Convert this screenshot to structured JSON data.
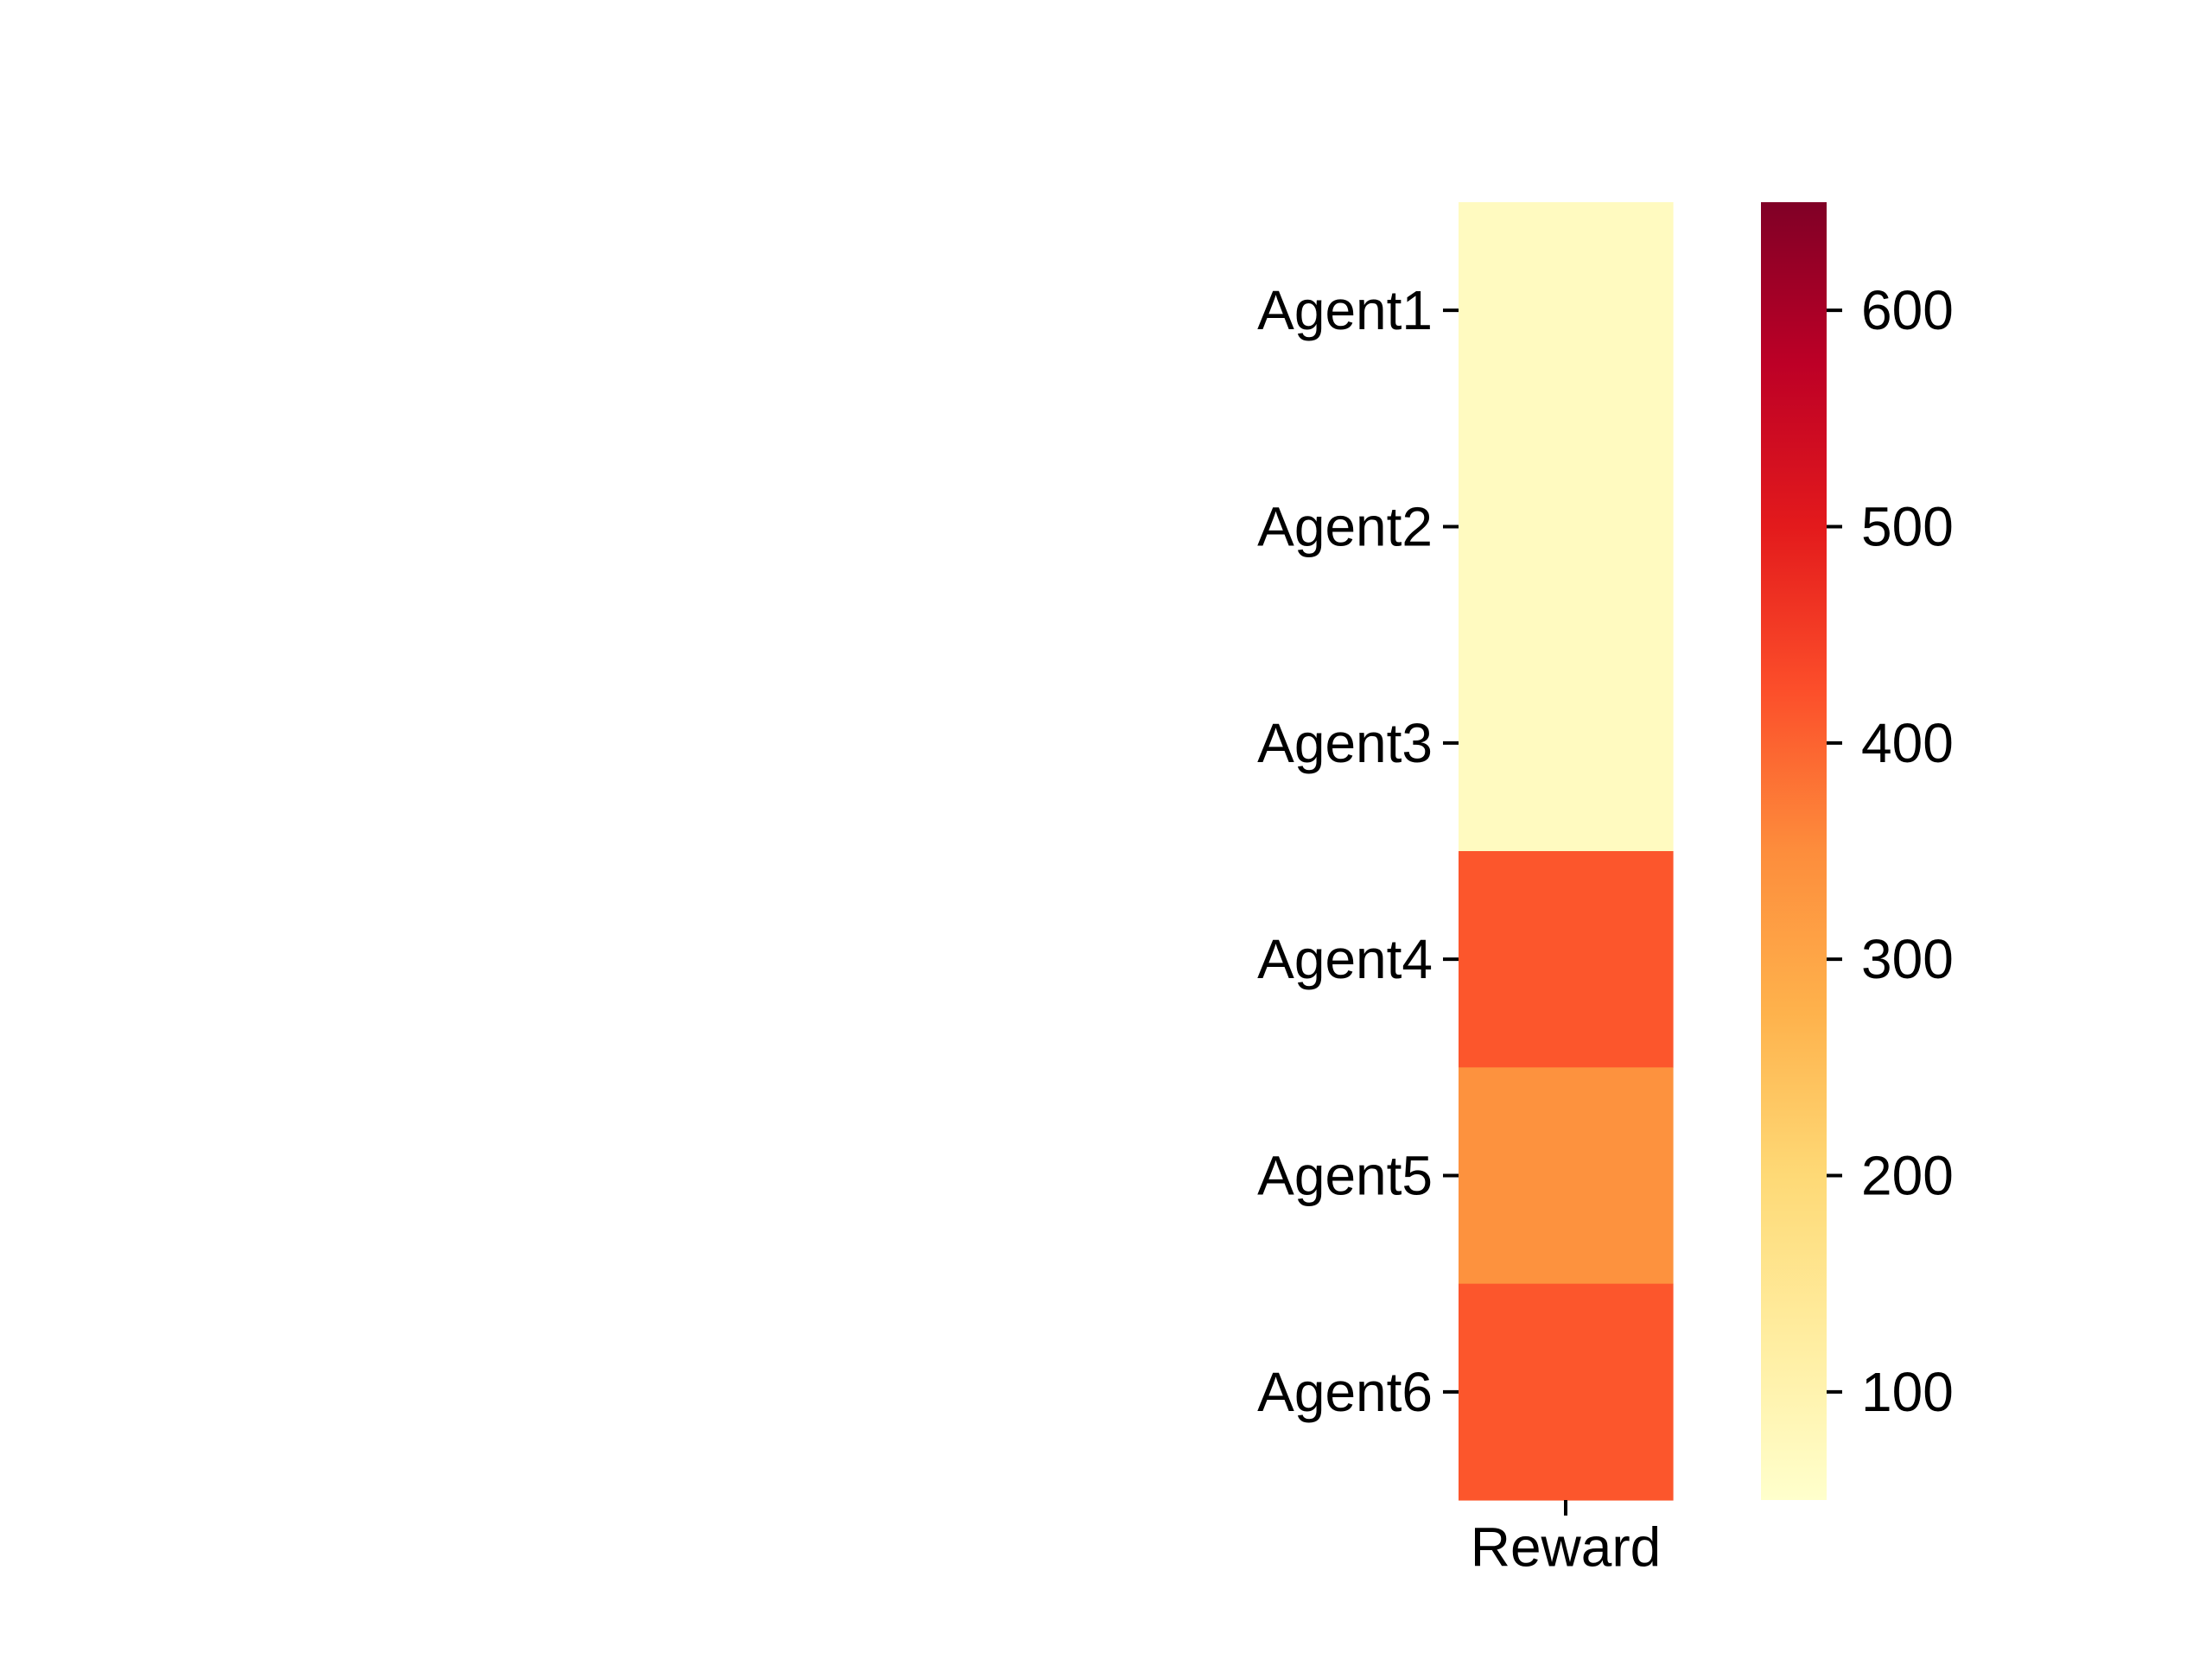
{
  "chart_data": {
    "type": "heatmap",
    "title": "",
    "xlabel": "",
    "ylabel": "",
    "columns": [
      "Reward"
    ],
    "rows": [
      "Agent1",
      "Agent2",
      "Agent3",
      "Agent4",
      "Agent5",
      "Agent6"
    ],
    "values": [
      [
        70
      ],
      [
        70
      ],
      [
        70
      ],
      [
        415
      ],
      [
        340
      ],
      [
        415
      ]
    ],
    "colormap": "YlOrRd",
    "colorbar": {
      "range": [
        50,
        650
      ],
      "ticks": [
        100,
        200,
        300,
        400,
        500,
        600
      ],
      "tick_labels": [
        "100",
        "200",
        "300",
        "400",
        "500",
        "600"
      ]
    },
    "grid": false,
    "legend": "none"
  }
}
